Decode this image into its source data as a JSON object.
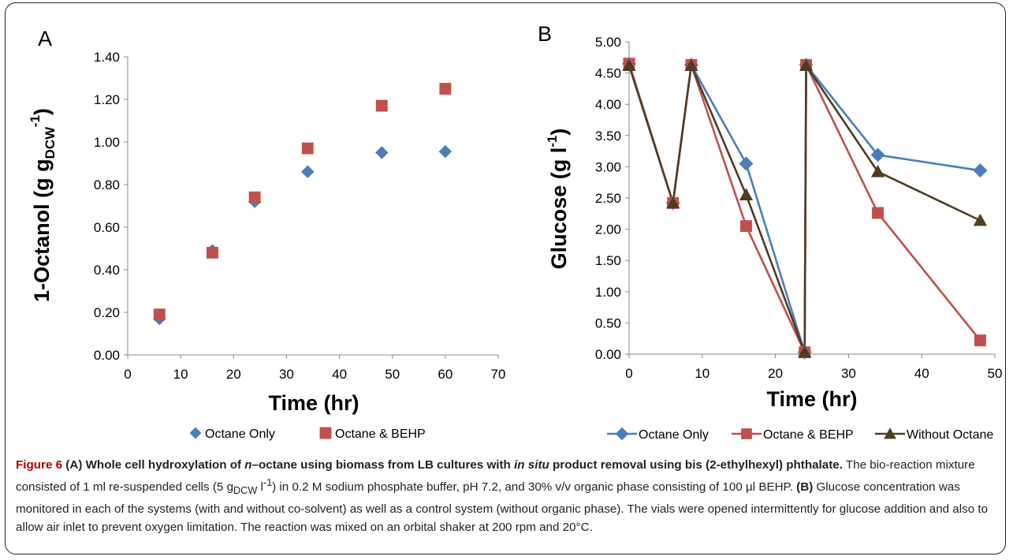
{
  "chart_data": [
    {
      "type": "scatter",
      "panel_label": "A",
      "xlabel": "Time (hr)",
      "ylabel_main": "1-Octanol (g g",
      "ylabel_sub": "DCW",
      "ylabel_sup": "-1",
      "ylabel_end": ")",
      "xlim": [
        0,
        70
      ],
      "ylim": [
        0,
        1.4
      ],
      "x_ticks": [
        "0",
        "10",
        "20",
        "30",
        "40",
        "50",
        "60",
        "70"
      ],
      "y_ticks": [
        "0.00",
        "0.20",
        "0.40",
        "0.60",
        "0.80",
        "1.00",
        "1.20",
        "1.40"
      ],
      "legend_position": "bottom",
      "series": [
        {
          "name": "Octane Only",
          "marker": "diamond",
          "color": "#4a7ebb",
          "x": [
            6,
            16,
            24,
            34,
            48,
            60
          ],
          "y": [
            0.17,
            0.49,
            0.72,
            0.86,
            0.95,
            0.955
          ]
        },
        {
          "name": "Octane & BEHP",
          "marker": "square",
          "color": "#c0504d",
          "x": [
            6,
            16,
            24,
            34,
            48,
            60
          ],
          "y": [
            0.19,
            0.48,
            0.74,
            0.97,
            1.17,
            1.25
          ]
        }
      ]
    },
    {
      "type": "line",
      "panel_label": "B",
      "xlabel": "Time (hr)",
      "ylabel_main": "Glucose (g l",
      "ylabel_sup": "-1",
      "ylabel_end": ")",
      "xlim": [
        0,
        50
      ],
      "ylim": [
        0,
        5
      ],
      "x_ticks": [
        "0",
        "10",
        "20",
        "30",
        "40",
        "50"
      ],
      "y_ticks": [
        "0.00",
        "0.50",
        "1.00",
        "1.50",
        "2.00",
        "2.50",
        "3.00",
        "3.50",
        "4.00",
        "4.50",
        "5.00"
      ],
      "legend_position": "bottom",
      "series": [
        {
          "name": "Octane Only",
          "marker": "diamond",
          "color": "#4a7ebb",
          "x": [
            0,
            6,
            8.5,
            16,
            24,
            24.2,
            34,
            48
          ],
          "y": [
            4.65,
            2.42,
            4.63,
            3.05,
            0.03,
            4.63,
            3.19,
            2.94
          ]
        },
        {
          "name": "Octane & BEHP",
          "marker": "square",
          "color": "#c0504d",
          "x": [
            0,
            6,
            8.5,
            16,
            24,
            24.2,
            34,
            48
          ],
          "y": [
            4.65,
            2.42,
            4.63,
            2.05,
            0.03,
            4.63,
            2.26,
            0.22
          ]
        },
        {
          "name": "Without Octane",
          "marker": "triangle",
          "color": "#4f3d22",
          "x": [
            0,
            6,
            8.5,
            16,
            24,
            24.2,
            34,
            48
          ],
          "y": [
            4.62,
            2.42,
            4.62,
            2.55,
            0.03,
            4.62,
            2.92,
            2.14
          ]
        }
      ]
    }
  ],
  "caption": {
    "figure_label": "Figure 6",
    "lead_a": " (A) Whole cell hydroxylation of ",
    "lead_n": "n",
    "lead_b": "–octane using biomass from LB cultures with ",
    "lead_insitu": "in situ",
    "lead_c": " product removal using bis (2-ethylhexyl) phthalate.",
    "body_a": " The bio-reaction mixture consisted of 1 ml re-suspended cells (5 g",
    "body_sub": "DCW",
    "body_b": " l",
    "body_sup": "-1",
    "body_c": ") in 0.2 M sodium phosphate buffer, pH 7.2, and 30% v/v organic phase consisting of 100 µl BEHP. ",
    "b_label": "(B)",
    "body_d": " Glucose concentration was monitored in each of the systems (with and without co-solvent) as well as a control system (without organic phase). The vials were opened intermittently for glucose addition and also to allow air inlet to prevent oxygen limitation. The reaction was mixed on an orbital shaker at 200 rpm and 20°C."
  }
}
